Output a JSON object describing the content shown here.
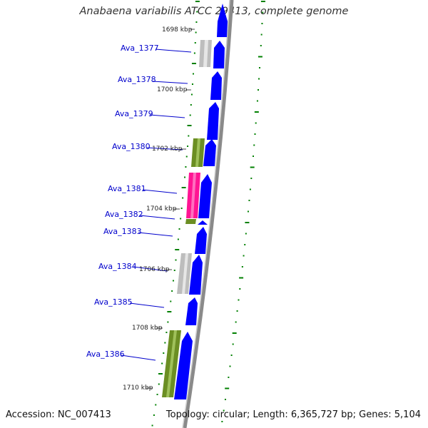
{
  "title": "Anabaena variabilis ATCC 29413, complete genome",
  "accession": "Accession: NC_007413",
  "summary": "Topology: circular; Length: 6,365,727 bp; Genes: 5,104",
  "colors": {
    "forward_cds": "#0000ff",
    "reverse_gray": "#c0c0c0",
    "reverse_olive": "#6b8e23",
    "reverse_pink": "#ff1493",
    "label_link": "#0000cc",
    "tick": "#008000",
    "backbone": "#808080"
  },
  "kbp_labels": [
    "1698 kbp",
    "1700 kbp",
    "1702 kbp",
    "1704 kbp",
    "1706 kbp",
    "1708 kbp",
    "1710 kbp"
  ],
  "gene_labels": [
    "Ava_1377",
    "Ava_1378",
    "Ava_1379",
    "Ava_1380",
    "Ava_1381",
    "Ava_1382",
    "Ava_1383",
    "Ava_1384",
    "Ava_1385",
    "Ava_1386"
  ]
}
